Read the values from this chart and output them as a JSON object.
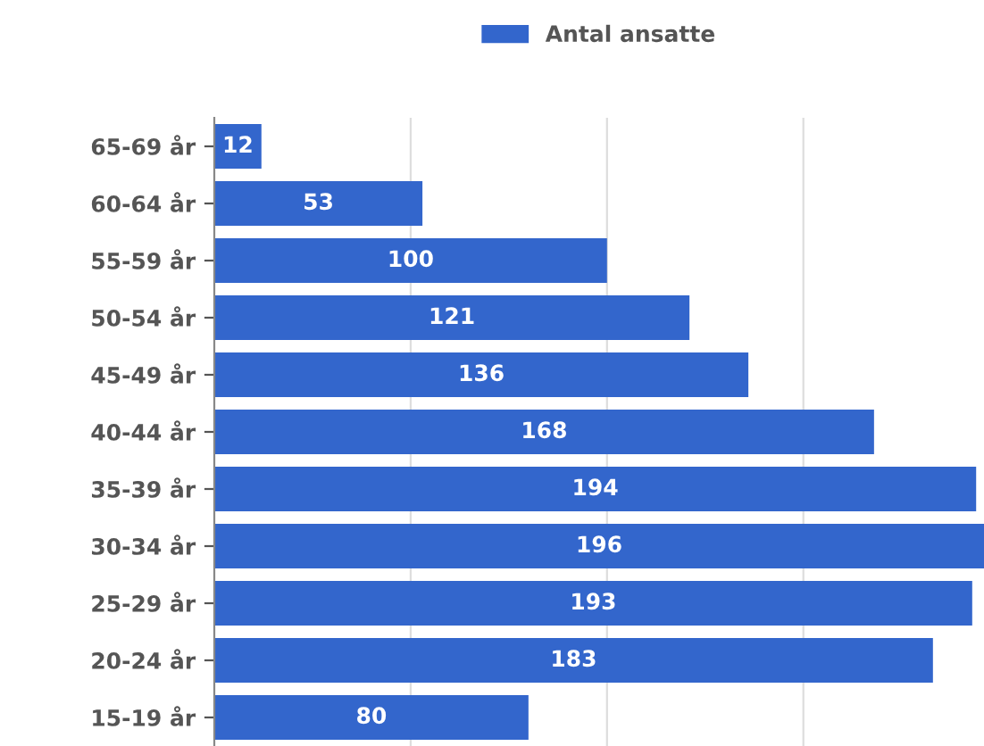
{
  "chart_data": {
    "type": "bar",
    "orientation": "horizontal",
    "categories": [
      "65-69 år",
      "60-64 år",
      "55-59 år",
      "50-54 år",
      "45-49 år",
      "40-44 år",
      "35-39 år",
      "30-34 år",
      "25-29 år",
      "20-24 år",
      "15-19 år"
    ],
    "series": [
      {
        "name": "Antal ansatte",
        "color": "#3366cc",
        "values": [
          12,
          53,
          100,
          121,
          136,
          168,
          194,
          196,
          193,
          183,
          80
        ]
      }
    ],
    "xlim": [
      0,
      196
    ],
    "xticks": [
      {
        "value": 50,
        "label": null
      },
      {
        "value": 100,
        "label": null
      },
      {
        "value": 150,
        "label": null
      }
    ],
    "grid": "x",
    "tick_labels": "y",
    "legend": "top",
    "data_labels": true
  }
}
